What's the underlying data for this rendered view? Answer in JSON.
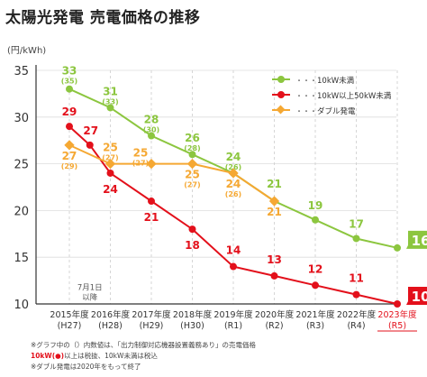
{
  "title": "太陽光発電 売電価格の推移",
  "unit": "(円/kWh)",
  "colors": {
    "green": "#8cc63f",
    "red": "#e3101b",
    "orange": "#f5a833",
    "axis": "#333333",
    "grid": "#dddddd"
  },
  "chart_data": {
    "type": "line",
    "title": "太陽光発電 売電価格の推移",
    "ylabel": "(円/kWh)",
    "ylim": [
      10,
      35
    ],
    "yticks": [
      10,
      15,
      20,
      25,
      30,
      35
    ],
    "grid": true,
    "legend_position": "top-right",
    "categories": [
      {
        "year": "2015年度",
        "era": "(H27)"
      },
      {
        "year": "2016年度",
        "era": "(H28)"
      },
      {
        "year": "2017年度",
        "era": "(H29)"
      },
      {
        "year": "2018年度",
        "era": "(H30)"
      },
      {
        "year": "2019年度",
        "era": "(R1)"
      },
      {
        "year": "2020年度",
        "era": "(R2)"
      },
      {
        "year": "2021年度",
        "era": "(R3)"
      },
      {
        "year": "2022年度",
        "era": "(R4)"
      },
      {
        "year": "2023年度",
        "era": "(R5)"
      }
    ],
    "highlight_category_index": 8,
    "annotation": {
      "label": "7月1日\n以降",
      "x": 0.5
    },
    "series": [
      {
        "name": "10kW未満",
        "color": "#8cc63f",
        "points": [
          {
            "x": 0,
            "y": 33,
            "label": "33",
            "sub": "(35)"
          },
          {
            "x": 1,
            "y": 31,
            "label": "31",
            "sub": "(33)"
          },
          {
            "x": 2,
            "y": 28,
            "label": "28",
            "sub": "(30)"
          },
          {
            "x": 3,
            "y": 26,
            "label": "26",
            "sub": "(28)"
          },
          {
            "x": 4,
            "y": 24,
            "label": "24",
            "sub": "(26)"
          },
          {
            "x": 5,
            "y": 21,
            "label": "21",
            "sub": ""
          },
          {
            "x": 6,
            "y": 19,
            "label": "19",
            "sub": ""
          },
          {
            "x": 7,
            "y": 17,
            "label": "17",
            "sub": ""
          },
          {
            "x": 8,
            "y": 16,
            "label": "16",
            "sub": "",
            "boxed": true
          }
        ]
      },
      {
        "name": "10kW以上50kW未満",
        "color": "#e3101b",
        "points": [
          {
            "x": 0,
            "y": 29,
            "label": "29",
            "sub": ""
          },
          {
            "x": 0.5,
            "y": 27,
            "label": "27",
            "sub": ""
          },
          {
            "x": 1,
            "y": 24,
            "label": "24",
            "sub": ""
          },
          {
            "x": 2,
            "y": 21,
            "label": "21",
            "sub": ""
          },
          {
            "x": 3,
            "y": 18,
            "label": "18",
            "sub": ""
          },
          {
            "x": 4,
            "y": 14,
            "label": "14",
            "sub": ""
          },
          {
            "x": 5,
            "y": 13,
            "label": "13",
            "sub": ""
          },
          {
            "x": 6,
            "y": 12,
            "label": "12",
            "sub": ""
          },
          {
            "x": 7,
            "y": 11,
            "label": "11",
            "sub": ""
          },
          {
            "x": 8,
            "y": 10,
            "label": "10",
            "sub": "",
            "boxed": true
          }
        ]
      },
      {
        "name": "ダブル発電",
        "color": "#f5a833",
        "points": [
          {
            "x": 0,
            "y": 27,
            "label": "27",
            "sub": "(29)"
          },
          {
            "x": 1,
            "y": 25,
            "label": "25",
            "sub": "(27)"
          },
          {
            "x": 2,
            "y": 25,
            "label": "25",
            "sub": "(27)"
          },
          {
            "x": 3,
            "y": 25,
            "label": "25",
            "sub": "(27)"
          },
          {
            "x": 4,
            "y": 24,
            "label": "24",
            "sub": "(26)"
          },
          {
            "x": 5,
            "y": 21,
            "label": "21",
            "sub": ""
          }
        ]
      }
    ]
  },
  "notes": {
    "line1": "※グラフ中の（）内数値は、「出力制御対応機器設置義務あり」の売電価格",
    "line2_red": "10kW(●)",
    "line2_rest": "以上は税抜、10kW未満は税込",
    "line3": "※ダブル発電は2020年をもって終了"
  }
}
